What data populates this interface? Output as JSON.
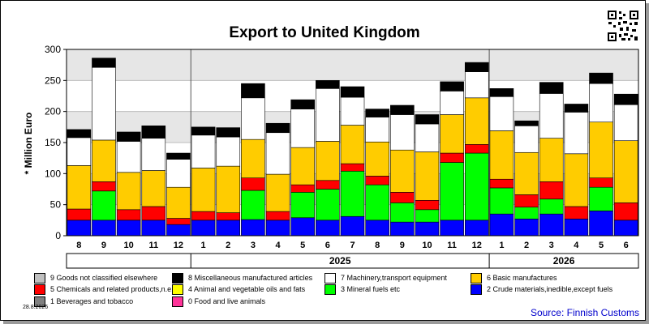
{
  "title": "Export to United Kingdom",
  "source": "Source: Finnish Customs",
  "date": "28.8.2026",
  "chart_data": {
    "type": "bar",
    "stacked": true,
    "title": "Export to United Kingdom",
    "ylabel": "* Million Euro",
    "xlabel": "",
    "ylim": [
      0,
      300
    ],
    "yticks": [
      0,
      50,
      100,
      150,
      200,
      250,
      300
    ],
    "grid": true,
    "legend_position": "bottom",
    "categories": [
      "8",
      "9",
      "10",
      "11",
      "12",
      "1",
      "2",
      "3",
      "4",
      "5",
      "6",
      "7",
      "8",
      "9",
      "10",
      "11",
      "12",
      "1",
      "2",
      "3",
      "4",
      "5",
      "6"
    ],
    "year_groups": [
      {
        "label": "",
        "start": 0,
        "end": 4
      },
      {
        "label": "2025",
        "start": 5,
        "end": 16
      },
      {
        "label": "2026",
        "start": 17,
        "end": 22
      }
    ],
    "series": [
      {
        "name": "0 Food and live animals",
        "color": "#ff3399",
        "values": [
          0,
          0,
          0,
          0,
          0,
          0,
          0,
          0,
          0,
          0,
          0,
          0,
          0,
          0,
          0,
          0,
          0,
          0,
          0,
          0,
          0,
          0,
          0
        ]
      },
      {
        "name": "1 Beverages and tobacco",
        "color": "#808080",
        "values": [
          0,
          0,
          0,
          0,
          0,
          0,
          0,
          0,
          0,
          0,
          0,
          0,
          0,
          0,
          0,
          0,
          0,
          0,
          0,
          0,
          0,
          0,
          0
        ]
      },
      {
        "name": "2 Crude materials,inedible,except fuels",
        "color": "#0000ff",
        "values": [
          25,
          25,
          25,
          25,
          18,
          25,
          25,
          26,
          25,
          29,
          25,
          31,
          25,
          22,
          22,
          25,
          25,
          35,
          27,
          35,
          27,
          40,
          25
        ]
      },
      {
        "name": "3 Mineral fuels etc",
        "color": "#00ff00",
        "values": [
          0,
          47,
          0,
          0,
          0,
          0,
          0,
          47,
          0,
          41,
          50,
          73,
          57,
          31,
          20,
          93,
          108,
          42,
          19,
          24,
          0,
          38,
          0
        ]
      },
      {
        "name": "4 Animal and vegetable oils and fats",
        "color": "#ffff00",
        "values": [
          0,
          0,
          0,
          0,
          0,
          0,
          0,
          0,
          0,
          0,
          0,
          0,
          0,
          0,
          0,
          0,
          0,
          0,
          0,
          0,
          0,
          0,
          0
        ]
      },
      {
        "name": "5 Chemicals and related products,n.e.s.",
        "color": "#ff0000",
        "values": [
          18,
          15,
          17,
          22,
          10,
          14,
          12,
          20,
          14,
          12,
          14,
          12,
          14,
          17,
          15,
          15,
          14,
          14,
          20,
          28,
          20,
          15,
          28
        ]
      },
      {
        "name": "6 Basic manufactures",
        "color": "#ffcc00",
        "values": [
          70,
          67,
          60,
          58,
          50,
          70,
          75,
          62,
          60,
          60,
          63,
          62,
          55,
          68,
          78,
          62,
          75,
          78,
          68,
          70,
          85,
          90,
          100
        ]
      },
      {
        "name": "7 Machinery,transport equipment",
        "color": "#ffffff",
        "values": [
          45,
          117,
          50,
          52,
          45,
          53,
          47,
          67,
          67,
          62,
          85,
          45,
          40,
          57,
          45,
          38,
          42,
          55,
          43,
          72,
          67,
          62,
          58
        ]
      },
      {
        "name": "8 Miscellaneous manufactured articles",
        "color": "#000000",
        "values": [
          13,
          15,
          15,
          20,
          10,
          13,
          15,
          23,
          15,
          15,
          13,
          17,
          13,
          15,
          15,
          15,
          15,
          13,
          8,
          18,
          13,
          17,
          17
        ]
      },
      {
        "name": "9 Goods not classified elsewhere",
        "color": "#c0c0c0",
        "values": [
          0,
          0,
          0,
          0,
          0,
          0,
          0,
          0,
          0,
          0,
          0,
          0,
          0,
          0,
          0,
          0,
          0,
          0,
          0,
          0,
          0,
          0,
          0
        ]
      }
    ],
    "legend_order": [
      "9 Goods not classified elsewhere",
      "8 Miscellaneous manufactured articles",
      "7 Machinery,transport equipment",
      "6 Basic manufactures",
      "5 Chemicals and related products,n.e.s.",
      "4 Animal and vegetable oils and fats",
      "3 Mineral fuels etc",
      "2 Crude materials,inedible,except fuels",
      "1 Beverages and tobacco",
      "0 Food and live animals"
    ]
  }
}
